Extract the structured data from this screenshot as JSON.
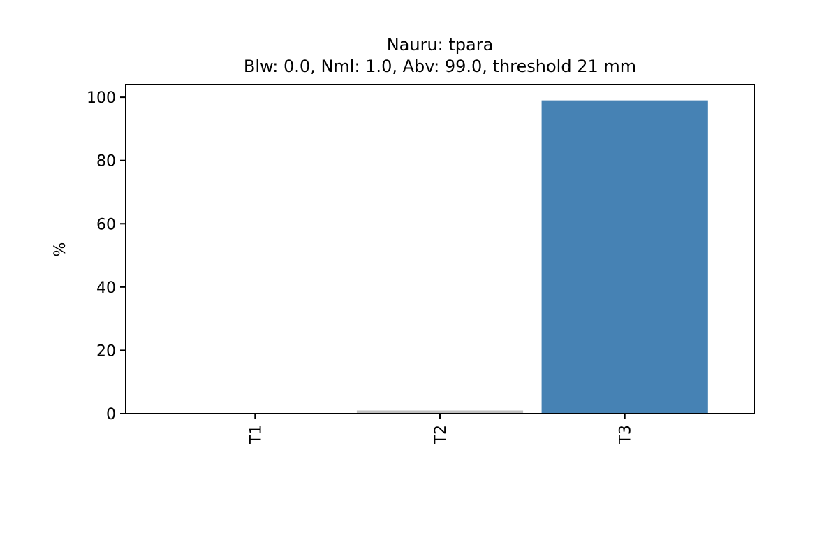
{
  "chart_data": {
    "type": "bar",
    "title": "Nauru: tpara",
    "subtitle": "Blw: 0.0, Nml: 1.0, Abv: 99.0, threshold 21 mm",
    "xlabel": "",
    "ylabel": "%",
    "categories": [
      "T1",
      "T2",
      "T3"
    ],
    "values": [
      0.0,
      1.0,
      99.0
    ],
    "bar_colors": [
      "#d3d3d3",
      "#c0c0c0",
      "#4682b4"
    ],
    "ylim": [
      0,
      104
    ],
    "yticks": [
      0,
      20,
      40,
      60,
      80,
      100
    ],
    "grid": false,
    "legend": "none"
  }
}
